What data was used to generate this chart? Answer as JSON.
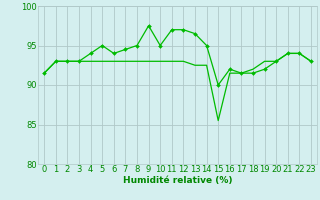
{
  "x_data1": [
    0,
    1,
    2,
    3,
    4,
    5,
    6,
    7,
    8,
    9,
    10,
    11,
    12,
    13,
    14,
    15,
    16,
    17,
    18,
    19,
    20,
    21,
    22,
    23
  ],
  "y_data1": [
    91.5,
    93,
    93,
    93,
    94,
    95,
    94,
    94.5,
    95,
    97.5,
    95,
    97,
    97,
    96.5,
    95,
    90,
    92,
    91.5,
    91.5,
    92,
    93,
    94,
    94,
    93
  ],
  "x_data2": [
    91.5,
    93,
    93,
    93,
    93,
    93,
    93,
    93,
    93,
    93,
    93,
    93,
    93,
    92.5,
    92.5,
    85.5,
    91.5,
    91.5,
    92,
    93,
    93,
    94,
    94,
    93
  ],
  "line_color": "#00bb00",
  "bg_color": "#d4efef",
  "grid_color": "#b0c8c8",
  "xlabel": "Humidité relative (%)",
  "ylim": [
    80,
    100
  ],
  "xlim": [
    -0.5,
    23.5
  ],
  "yticks": [
    80,
    85,
    90,
    95,
    100
  ],
  "xticks": [
    0,
    1,
    2,
    3,
    4,
    5,
    6,
    7,
    8,
    9,
    10,
    11,
    12,
    13,
    14,
    15,
    16,
    17,
    18,
    19,
    20,
    21,
    22,
    23
  ],
  "xlabel_color": "#008800",
  "tick_color": "#008800",
  "label_fontsize": 6.5,
  "tick_fontsize": 6.0
}
